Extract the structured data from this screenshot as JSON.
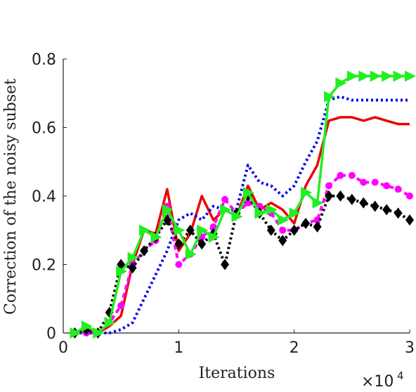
{
  "chart_data": {
    "type": "line",
    "xlabel": "Iterations",
    "ylabel": "Correction of the noisy subset",
    "x_exponent_label": "×10",
    "x_exponent": "4",
    "xlim": [
      0,
      3
    ],
    "ylim": [
      0,
      0.8
    ],
    "x_ticks": [
      0,
      1,
      2,
      3
    ],
    "x_tick_labels": [
      "0",
      "1",
      "2",
      "3"
    ],
    "y_ticks": [
      0,
      0.2,
      0.4,
      0.6,
      0.8
    ],
    "y_tick_labels": [
      "0",
      "0.2",
      "0.4",
      "0.6",
      "0.8"
    ],
    "grid": false,
    "legend": "none",
    "series": [
      {
        "color": "#ee0000",
        "style": "solid",
        "marker": "none",
        "x": [
          0.1,
          0.2,
          0.3,
          0.4,
          0.5,
          0.6,
          0.7,
          0.8,
          0.9,
          1.0,
          1.1,
          1.2,
          1.3,
          1.4,
          1.5,
          1.6,
          1.7,
          1.8,
          1.9,
          2.0,
          2.1,
          2.2,
          2.3,
          2.4,
          2.5,
          2.6,
          2.7,
          2.8,
          2.9,
          3.0
        ],
        "y": [
          0.0,
          0.01,
          0.0,
          0.02,
          0.05,
          0.2,
          0.3,
          0.29,
          0.42,
          0.24,
          0.29,
          0.4,
          0.33,
          0.36,
          0.34,
          0.43,
          0.36,
          0.38,
          0.36,
          0.32,
          0.43,
          0.49,
          0.62,
          0.63,
          0.63,
          0.62,
          0.63,
          0.62,
          0.61,
          0.61
        ]
      },
      {
        "color": "#0000ee",
        "style": "dotted",
        "marker": "none",
        "x": [
          0.1,
          0.2,
          0.3,
          0.4,
          0.5,
          0.6,
          0.7,
          0.8,
          0.9,
          1.0,
          1.1,
          1.2,
          1.3,
          1.4,
          1.5,
          1.6,
          1.7,
          1.8,
          1.9,
          2.0,
          2.1,
          2.2,
          2.3,
          2.4,
          2.5,
          2.6,
          2.7,
          2.8,
          2.9,
          3.0
        ],
        "y": [
          0.0,
          0.0,
          0.0,
          0.0,
          0.01,
          0.03,
          0.1,
          0.17,
          0.24,
          0.33,
          0.35,
          0.33,
          0.37,
          0.36,
          0.36,
          0.49,
          0.44,
          0.43,
          0.4,
          0.43,
          0.5,
          0.56,
          0.68,
          0.69,
          0.68,
          0.68,
          0.68,
          0.68,
          0.68,
          0.68
        ]
      },
      {
        "color": "#ff00ff",
        "style": "dashed",
        "marker": "circle",
        "x": [
          0.1,
          0.2,
          0.3,
          0.4,
          0.5,
          0.6,
          0.7,
          0.8,
          0.9,
          1.0,
          1.1,
          1.2,
          1.3,
          1.4,
          1.5,
          1.6,
          1.7,
          1.8,
          1.9,
          2.0,
          2.1,
          2.2,
          2.3,
          2.4,
          2.5,
          2.6,
          2.7,
          2.8,
          2.9,
          3.0
        ],
        "y": [
          0.0,
          0.0,
          0.0,
          0.03,
          0.08,
          0.2,
          0.24,
          0.27,
          0.37,
          0.2,
          0.23,
          0.28,
          0.31,
          0.39,
          0.35,
          0.38,
          0.37,
          0.35,
          0.3,
          0.3,
          0.32,
          0.33,
          0.43,
          0.46,
          0.46,
          0.44,
          0.44,
          0.43,
          0.42,
          0.4
        ]
      },
      {
        "color": "#000000",
        "style": "dotted",
        "marker": "diamond",
        "x": [
          0.1,
          0.2,
          0.3,
          0.4,
          0.5,
          0.6,
          0.7,
          0.8,
          0.9,
          1.0,
          1.1,
          1.2,
          1.3,
          1.4,
          1.5,
          1.6,
          1.7,
          1.8,
          1.9,
          2.0,
          2.1,
          2.2,
          2.3,
          2.4,
          2.5,
          2.6,
          2.7,
          2.8,
          2.9,
          3.0
        ],
        "y": [
          0.0,
          0.01,
          0.0,
          0.06,
          0.2,
          0.19,
          0.24,
          0.28,
          0.33,
          0.26,
          0.3,
          0.26,
          0.29,
          0.2,
          0.35,
          0.4,
          0.35,
          0.3,
          0.27,
          0.3,
          0.32,
          0.31,
          0.4,
          0.4,
          0.39,
          0.38,
          0.37,
          0.36,
          0.35,
          0.33
        ]
      },
      {
        "color": "#22ee22",
        "style": "solid",
        "marker": "triangle-right",
        "x": [
          0.1,
          0.2,
          0.3,
          0.4,
          0.5,
          0.6,
          0.7,
          0.8,
          0.9,
          1.0,
          1.1,
          1.2,
          1.3,
          1.4,
          1.5,
          1.6,
          1.7,
          1.8,
          1.9,
          2.0,
          2.1,
          2.2,
          2.3,
          2.4,
          2.5,
          2.6,
          2.7,
          2.8,
          2.9,
          3.0
        ],
        "y": [
          0.0,
          0.02,
          0.0,
          0.03,
          0.18,
          0.22,
          0.3,
          0.28,
          0.36,
          0.3,
          0.23,
          0.3,
          0.28,
          0.36,
          0.34,
          0.41,
          0.35,
          0.36,
          0.33,
          0.35,
          0.41,
          0.38,
          0.69,
          0.73,
          0.75,
          0.75,
          0.75,
          0.75,
          0.75,
          0.75
        ]
      }
    ]
  }
}
